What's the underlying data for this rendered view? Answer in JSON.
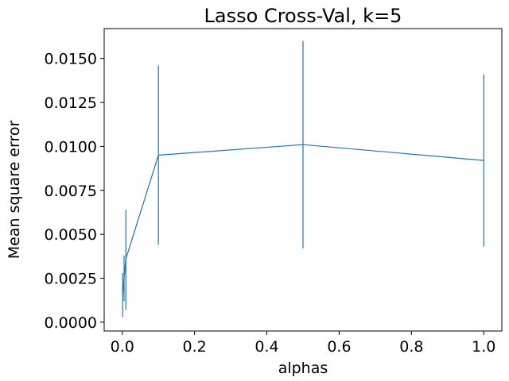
{
  "chart_data": {
    "type": "line",
    "title": "Lasso Cross-Val, k=5",
    "xlabel": "alphas",
    "ylabel": "Mean square error",
    "xlim": [
      -0.05,
      1.05
    ],
    "ylim": [
      -0.0005,
      0.0167
    ],
    "xticks": [
      0.0,
      0.2,
      0.4,
      0.6,
      0.8,
      1.0
    ],
    "xtick_labels": [
      "0.0",
      "0.2",
      "0.4",
      "0.6",
      "0.8",
      "1.0"
    ],
    "yticks": [
      0.0,
      0.0025,
      0.005,
      0.0075,
      0.01,
      0.0125,
      0.015
    ],
    "ytick_labels": [
      "0.0000",
      "0.0025",
      "0.0050",
      "0.0075",
      "0.0100",
      "0.0125",
      "0.0150"
    ],
    "grid": false,
    "color": "#1f77b4",
    "series": [
      {
        "x": [
          0.001,
          0.005,
          0.01,
          0.1,
          0.5,
          1.0
        ],
        "y": [
          0.0015,
          0.0025,
          0.0036,
          0.0095,
          0.0101,
          0.0092
        ],
        "err_low": [
          0.0003,
          0.0012,
          0.0007,
          0.0044,
          0.0042,
          0.0043
        ],
        "err_high": [
          0.0028,
          0.0038,
          0.0064,
          0.0146,
          0.016,
          0.0141
        ]
      }
    ]
  }
}
